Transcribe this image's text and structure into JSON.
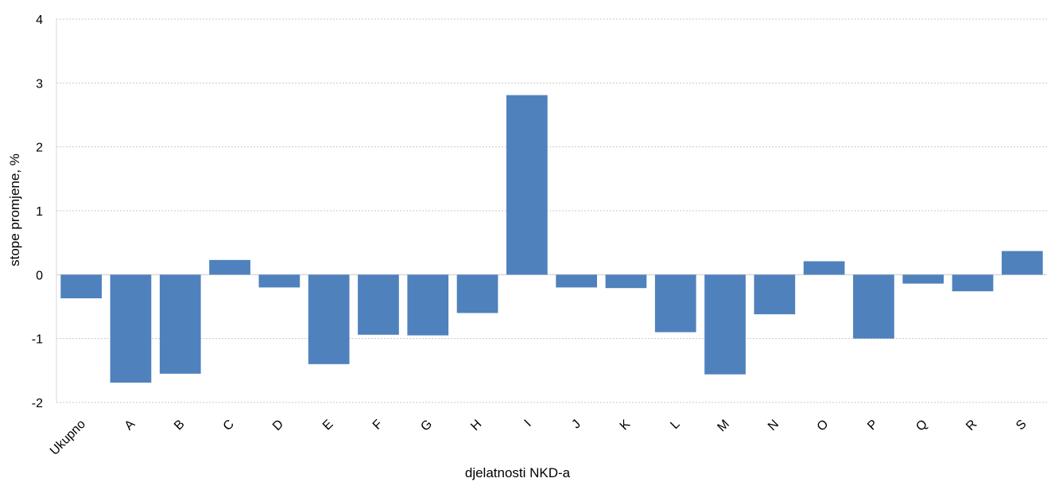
{
  "chart_data": {
    "type": "bar",
    "title": "",
    "xlabel": "djelatnosti NKD-a",
    "ylabel": "stope promjene, %",
    "ylim": [
      -2,
      4
    ],
    "yticks": [
      -2,
      -1,
      0,
      1,
      2,
      3,
      4
    ],
    "ytick_labels": [
      "-2",
      "-1",
      "0",
      "1",
      "2",
      "3",
      "4"
    ],
    "grid": true,
    "legend": "none",
    "bar_color": "#4f81bd",
    "categories": [
      "Ukupno",
      "A",
      "B",
      "C",
      "D",
      "E",
      "F",
      "G",
      "H",
      "I",
      "J",
      "K",
      "L",
      "M",
      "N",
      "O",
      "P",
      "Q",
      "R",
      "S"
    ],
    "values": [
      -0.37,
      -1.69,
      -1.55,
      0.23,
      -0.2,
      -1.4,
      -0.94,
      -0.95,
      -0.6,
      2.81,
      -0.2,
      -0.21,
      -0.9,
      -1.56,
      -0.62,
      0.21,
      -1.0,
      -0.14,
      -0.26,
      0.37
    ]
  }
}
